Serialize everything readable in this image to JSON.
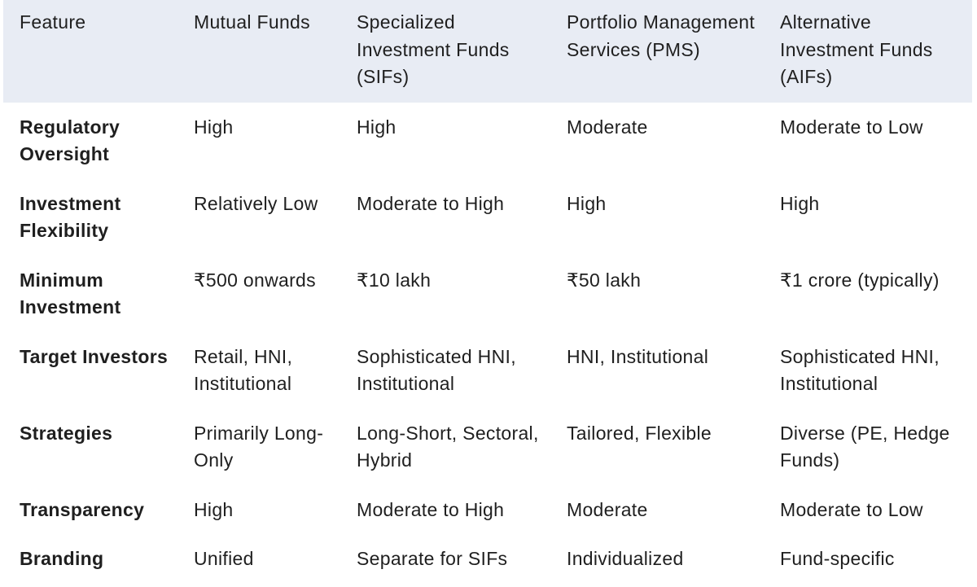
{
  "table": {
    "headers": [
      "Feature",
      "Mutual Funds",
      "Specialized Investment Funds (SIFs)",
      "Portfolio Management Services (PMS)",
      "Alternative Investment Funds (AIFs)"
    ],
    "rows": [
      [
        "Regulatory Oversight",
        "High",
        "High",
        "Moderate",
        "Moderate to Low"
      ],
      [
        "Investment Flexibility",
        "Relatively Low",
        "Moderate to High",
        "High",
        "High"
      ],
      [
        "Minimum Investment",
        "₹500 onwards",
        "₹10 lakh",
        "₹50 lakh",
        "₹1 crore (typically)"
      ],
      [
        "Target Investors",
        "Retail, HNI, Institutional",
        "Sophisticated HNI, Institutional",
        "HNI, Institutional",
        "Sophisticated HNI, Institutional"
      ],
      [
        "Strategies",
        "Primarily Long-Only",
        "Long-Short, Sectoral, Hybrid",
        "Tailored, Flexible",
        "Diverse (PE, Hedge Funds)"
      ],
      [
        "Transparency",
        "High",
        "Moderate to High",
        "Moderate",
        "Moderate to Low"
      ],
      [
        "Branding",
        "Unified",
        "Separate for SIFs",
        "Individualized",
        "Fund-specific"
      ]
    ]
  }
}
